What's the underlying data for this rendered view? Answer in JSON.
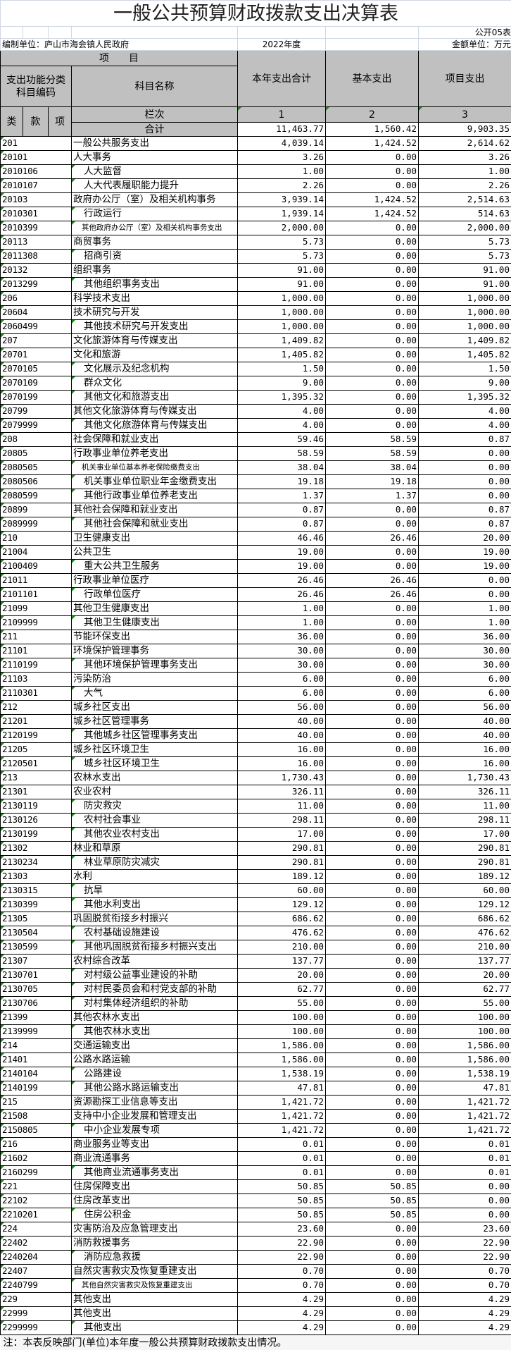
{
  "title": "一般公共预算财政拨款支出决算表",
  "form_no": "公开05表",
  "unit_label": "编制单位：庐山市海会镇人民政府",
  "year": "2022年度",
  "amount_unit": "金额单位：万元",
  "header": {
    "item": "项　　目",
    "code_col": "支出功能分类科目编码",
    "name_col": "科目名称",
    "col1": "本年支出合计",
    "col2": "基本支出",
    "col3": "项目支出",
    "lei": "类",
    "kuan": "款",
    "xiang": "项",
    "lanci": "栏次",
    "n1": "1",
    "n2": "2",
    "n3": "3"
  },
  "total": {
    "label": "合计",
    "total": "11,463.77",
    "basic": "1,560.42",
    "project": "9,903.35"
  },
  "rows": [
    [
      "201",
      "一般公共服务支出",
      "4,039.14",
      "1,424.52",
      "2,614.62"
    ],
    [
      "20101",
      "人大事务",
      "3.26",
      "0.00",
      "3.26"
    ],
    [
      "2010106",
      "人大监督",
      "1.00",
      "0.00",
      "1.00"
    ],
    [
      "2010107",
      "人大代表履职能力提升",
      "2.26",
      "0.00",
      "2.26"
    ],
    [
      "20103",
      "政府办公厅（室）及相关机构事务",
      "3,939.14",
      "1,424.52",
      "2,514.63"
    ],
    [
      "2010301",
      "行政运行",
      "1,939.14",
      "1,424.52",
      "514.63"
    ],
    [
      "2010399",
      "其他政府办公厅（室）及相关机构事务支出",
      "2,000.00",
      "0.00",
      "2,000.00"
    ],
    [
      "20113",
      "商贸事务",
      "5.73",
      "0.00",
      "5.73"
    ],
    [
      "2011308",
      "招商引资",
      "5.73",
      "0.00",
      "5.73"
    ],
    [
      "20132",
      "组织事务",
      "91.00",
      "0.00",
      "91.00"
    ],
    [
      "2013299",
      "其他组织事务支出",
      "91.00",
      "0.00",
      "91.00"
    ],
    [
      "206",
      "科学技术支出",
      "1,000.00",
      "0.00",
      "1,000.00"
    ],
    [
      "20604",
      "技术研究与开发",
      "1,000.00",
      "0.00",
      "1,000.00"
    ],
    [
      "2060499",
      "其他技术研究与开发支出",
      "1,000.00",
      "0.00",
      "1,000.00"
    ],
    [
      "207",
      "文化旅游体育与传媒支出",
      "1,409.82",
      "0.00",
      "1,409.82"
    ],
    [
      "20701",
      "文化和旅游",
      "1,405.82",
      "0.00",
      "1,405.82"
    ],
    [
      "2070105",
      "文化展示及纪念机构",
      "1.50",
      "0.00",
      "1.50"
    ],
    [
      "2070109",
      "群众文化",
      "9.00",
      "0.00",
      "9.00"
    ],
    [
      "2070199",
      "其他文化和旅游支出",
      "1,395.32",
      "0.00",
      "1,395.32"
    ],
    [
      "20799",
      "其他文化旅游体育与传媒支出",
      "4.00",
      "0.00",
      "4.00"
    ],
    [
      "2079999",
      "其他文化旅游体育与传媒支出",
      "4.00",
      "0.00",
      "4.00"
    ],
    [
      "208",
      "社会保障和就业支出",
      "59.46",
      "58.59",
      "0.87"
    ],
    [
      "20805",
      "行政事业单位养老支出",
      "58.59",
      "58.59",
      "0.00"
    ],
    [
      "2080505",
      "机关事业单位基本养老保险缴费支出",
      "38.04",
      "38.04",
      "0.00"
    ],
    [
      "2080506",
      "机关事业单位职业年金缴费支出",
      "19.18",
      "19.18",
      "0.00"
    ],
    [
      "2080599",
      "其他行政事业单位养老支出",
      "1.37",
      "1.37",
      "0.00"
    ],
    [
      "20899",
      "其他社会保障和就业支出",
      "0.87",
      "0.00",
      "0.87"
    ],
    [
      "2089999",
      "其他社会保障和就业支出",
      "0.87",
      "0.00",
      "0.87"
    ],
    [
      "210",
      "卫生健康支出",
      "46.46",
      "26.46",
      "20.00"
    ],
    [
      "21004",
      "公共卫生",
      "19.00",
      "0.00",
      "19.00"
    ],
    [
      "2100409",
      "重大公共卫生服务",
      "19.00",
      "0.00",
      "19.00"
    ],
    [
      "21011",
      "行政事业单位医疗",
      "26.46",
      "26.46",
      "0.00"
    ],
    [
      "2101101",
      "行政单位医疗",
      "26.46",
      "26.46",
      "0.00"
    ],
    [
      "21099",
      "其他卫生健康支出",
      "1.00",
      "0.00",
      "1.00"
    ],
    [
      "2109999",
      "其他卫生健康支出",
      "1.00",
      "0.00",
      "1.00"
    ],
    [
      "211",
      "节能环保支出",
      "36.00",
      "0.00",
      "36.00"
    ],
    [
      "21101",
      "环境保护管理事务",
      "30.00",
      "0.00",
      "30.00"
    ],
    [
      "2110199",
      "其他环境保护管理事务支出",
      "30.00",
      "0.00",
      "30.00"
    ],
    [
      "21103",
      "污染防治",
      "6.00",
      "0.00",
      "6.00"
    ],
    [
      "2110301",
      "大气",
      "6.00",
      "0.00",
      "6.00"
    ],
    [
      "212",
      "城乡社区支出",
      "56.00",
      "0.00",
      "56.00"
    ],
    [
      "21201",
      "城乡社区管理事务",
      "40.00",
      "0.00",
      "40.00"
    ],
    [
      "2120199",
      "其他城乡社区管理事务支出",
      "40.00",
      "0.00",
      "40.00"
    ],
    [
      "21205",
      "城乡社区环境卫生",
      "16.00",
      "0.00",
      "16.00"
    ],
    [
      "2120501",
      "城乡社区环境卫生",
      "16.00",
      "0.00",
      "16.00"
    ],
    [
      "213",
      "农林水支出",
      "1,730.43",
      "0.00",
      "1,730.43"
    ],
    [
      "21301",
      "农业农村",
      "326.11",
      "0.00",
      "326.11"
    ],
    [
      "2130119",
      "防灾救灾",
      "11.00",
      "0.00",
      "11.00"
    ],
    [
      "2130126",
      "农村社会事业",
      "298.11",
      "0.00",
      "298.11"
    ],
    [
      "2130199",
      "其他农业农村支出",
      "17.00",
      "0.00",
      "17.00"
    ],
    [
      "21302",
      "林业和草原",
      "290.81",
      "0.00",
      "290.81"
    ],
    [
      "2130234",
      "林业草原防灾减灾",
      "290.81",
      "0.00",
      "290.81"
    ],
    [
      "21303",
      "水利",
      "189.12",
      "0.00",
      "189.12"
    ],
    [
      "2130315",
      "抗旱",
      "60.00",
      "0.00",
      "60.00"
    ],
    [
      "2130399",
      "其他水利支出",
      "129.12",
      "0.00",
      "129.12"
    ],
    [
      "21305",
      "巩固脱贫衔接乡村振兴",
      "686.62",
      "0.00",
      "686.62"
    ],
    [
      "2130504",
      "农村基础设施建设",
      "476.62",
      "0.00",
      "476.62"
    ],
    [
      "2130599",
      "其他巩固脱贫衔接乡村振兴支出",
      "210.00",
      "0.00",
      "210.00"
    ],
    [
      "21307",
      "农村综合改革",
      "137.77",
      "0.00",
      "137.77"
    ],
    [
      "2130701",
      "对村级公益事业建设的补助",
      "20.00",
      "0.00",
      "20.00"
    ],
    [
      "2130705",
      "对村民委员会和村党支部的补助",
      "62.77",
      "0.00",
      "62.77"
    ],
    [
      "2130706",
      "对村集体经济组织的补助",
      "55.00",
      "0.00",
      "55.00"
    ],
    [
      "21399",
      "其他农林水支出",
      "100.00",
      "0.00",
      "100.00"
    ],
    [
      "2139999",
      "其他农林水支出",
      "100.00",
      "0.00",
      "100.00"
    ],
    [
      "214",
      "交通运输支出",
      "1,586.00",
      "0.00",
      "1,586.00"
    ],
    [
      "21401",
      "公路水路运输",
      "1,586.00",
      "0.00",
      "1,586.00"
    ],
    [
      "2140104",
      "公路建设",
      "1,538.19",
      "0.00",
      "1,538.19"
    ],
    [
      "2140199",
      "其他公路水路运输支出",
      "47.81",
      "0.00",
      "47.81"
    ],
    [
      "215",
      "资源勘探工业信息等支出",
      "1,421.72",
      "0.00",
      "1,421.72"
    ],
    [
      "21508",
      "支持中小企业发展和管理支出",
      "1,421.72",
      "0.00",
      "1,421.72"
    ],
    [
      "2150805",
      "中小企业发展专项",
      "1,421.72",
      "0.00",
      "1,421.72"
    ],
    [
      "216",
      "商业服务业等支出",
      "0.01",
      "0.00",
      "0.01"
    ],
    [
      "21602",
      "商业流通事务",
      "0.01",
      "0.00",
      "0.01"
    ],
    [
      "2160299",
      "其他商业流通事务支出",
      "0.01",
      "0.00",
      "0.01"
    ],
    [
      "221",
      "住房保障支出",
      "50.85",
      "50.85",
      "0.00"
    ],
    [
      "22102",
      "住房改革支出",
      "50.85",
      "50.85",
      "0.00"
    ],
    [
      "2210201",
      "住房公积金",
      "50.85",
      "50.85",
      "0.00"
    ],
    [
      "224",
      "灾害防治及应急管理支出",
      "23.60",
      "0.00",
      "23.60"
    ],
    [
      "22402",
      "消防救援事务",
      "22.90",
      "0.00",
      "22.90"
    ],
    [
      "2240204",
      "消防应急救援",
      "22.90",
      "0.00",
      "22.90"
    ],
    [
      "22407",
      "自然灾害救灾及恢复重建支出",
      "0.70",
      "0.00",
      "0.70"
    ],
    [
      "2240799",
      "其他自然灾害救灾及恢复重建支出",
      "0.70",
      "0.00",
      "0.70"
    ],
    [
      "229",
      "其他支出",
      "4.29",
      "0.00",
      "4.29"
    ],
    [
      "22999",
      "其他支出",
      "4.29",
      "0.00",
      "4.29"
    ],
    [
      "2299999",
      "其他支出",
      "4.29",
      "0.00",
      "4.29"
    ]
  ],
  "footnote": "注：本表反映部门(单位)本年度一般公共预算财政拨款支出情况。"
}
